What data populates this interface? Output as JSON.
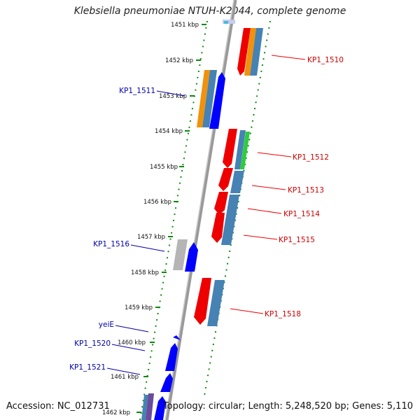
{
  "title": "Klebsiella pneumoniae NTUH-K2044, complete genome",
  "footer": {
    "accession": "Accession: NC_012731",
    "topology": "Topology: circular; Length: 5,248,520 bp; Genes: 5,110"
  },
  "ticks": [
    "1451 kbp",
    "1452 kbp",
    "1453 kbp",
    "1454 kbp",
    "1455 kbp",
    "1456 kbp",
    "1457 kbp",
    "1458 kbp",
    "1459 kbp",
    "1460 kbp",
    "1461 kbp",
    "1462 kbp"
  ],
  "right_labels": [
    "KP1_1510",
    "KP1_1512",
    "KP1_1513",
    "KP1_1514",
    "KP1_1515",
    "KP1_1518"
  ],
  "left_labels": [
    "KP1_1511",
    "KP1_1516",
    "yeiE",
    "KP1_1520",
    "KP1_1521"
  ],
  "colors": {
    "forward_gene": "#0000ff",
    "reverse_gene": "#ee0000",
    "label_right": "#cc0000",
    "label_left": "#0000aa",
    "track_dots": "#0a8a0a",
    "backbone": "#888888",
    "steelblue": "#4682b4",
    "orange": "#f0920c",
    "green": "#2ecc40",
    "gray": "#aaaaaa"
  }
}
